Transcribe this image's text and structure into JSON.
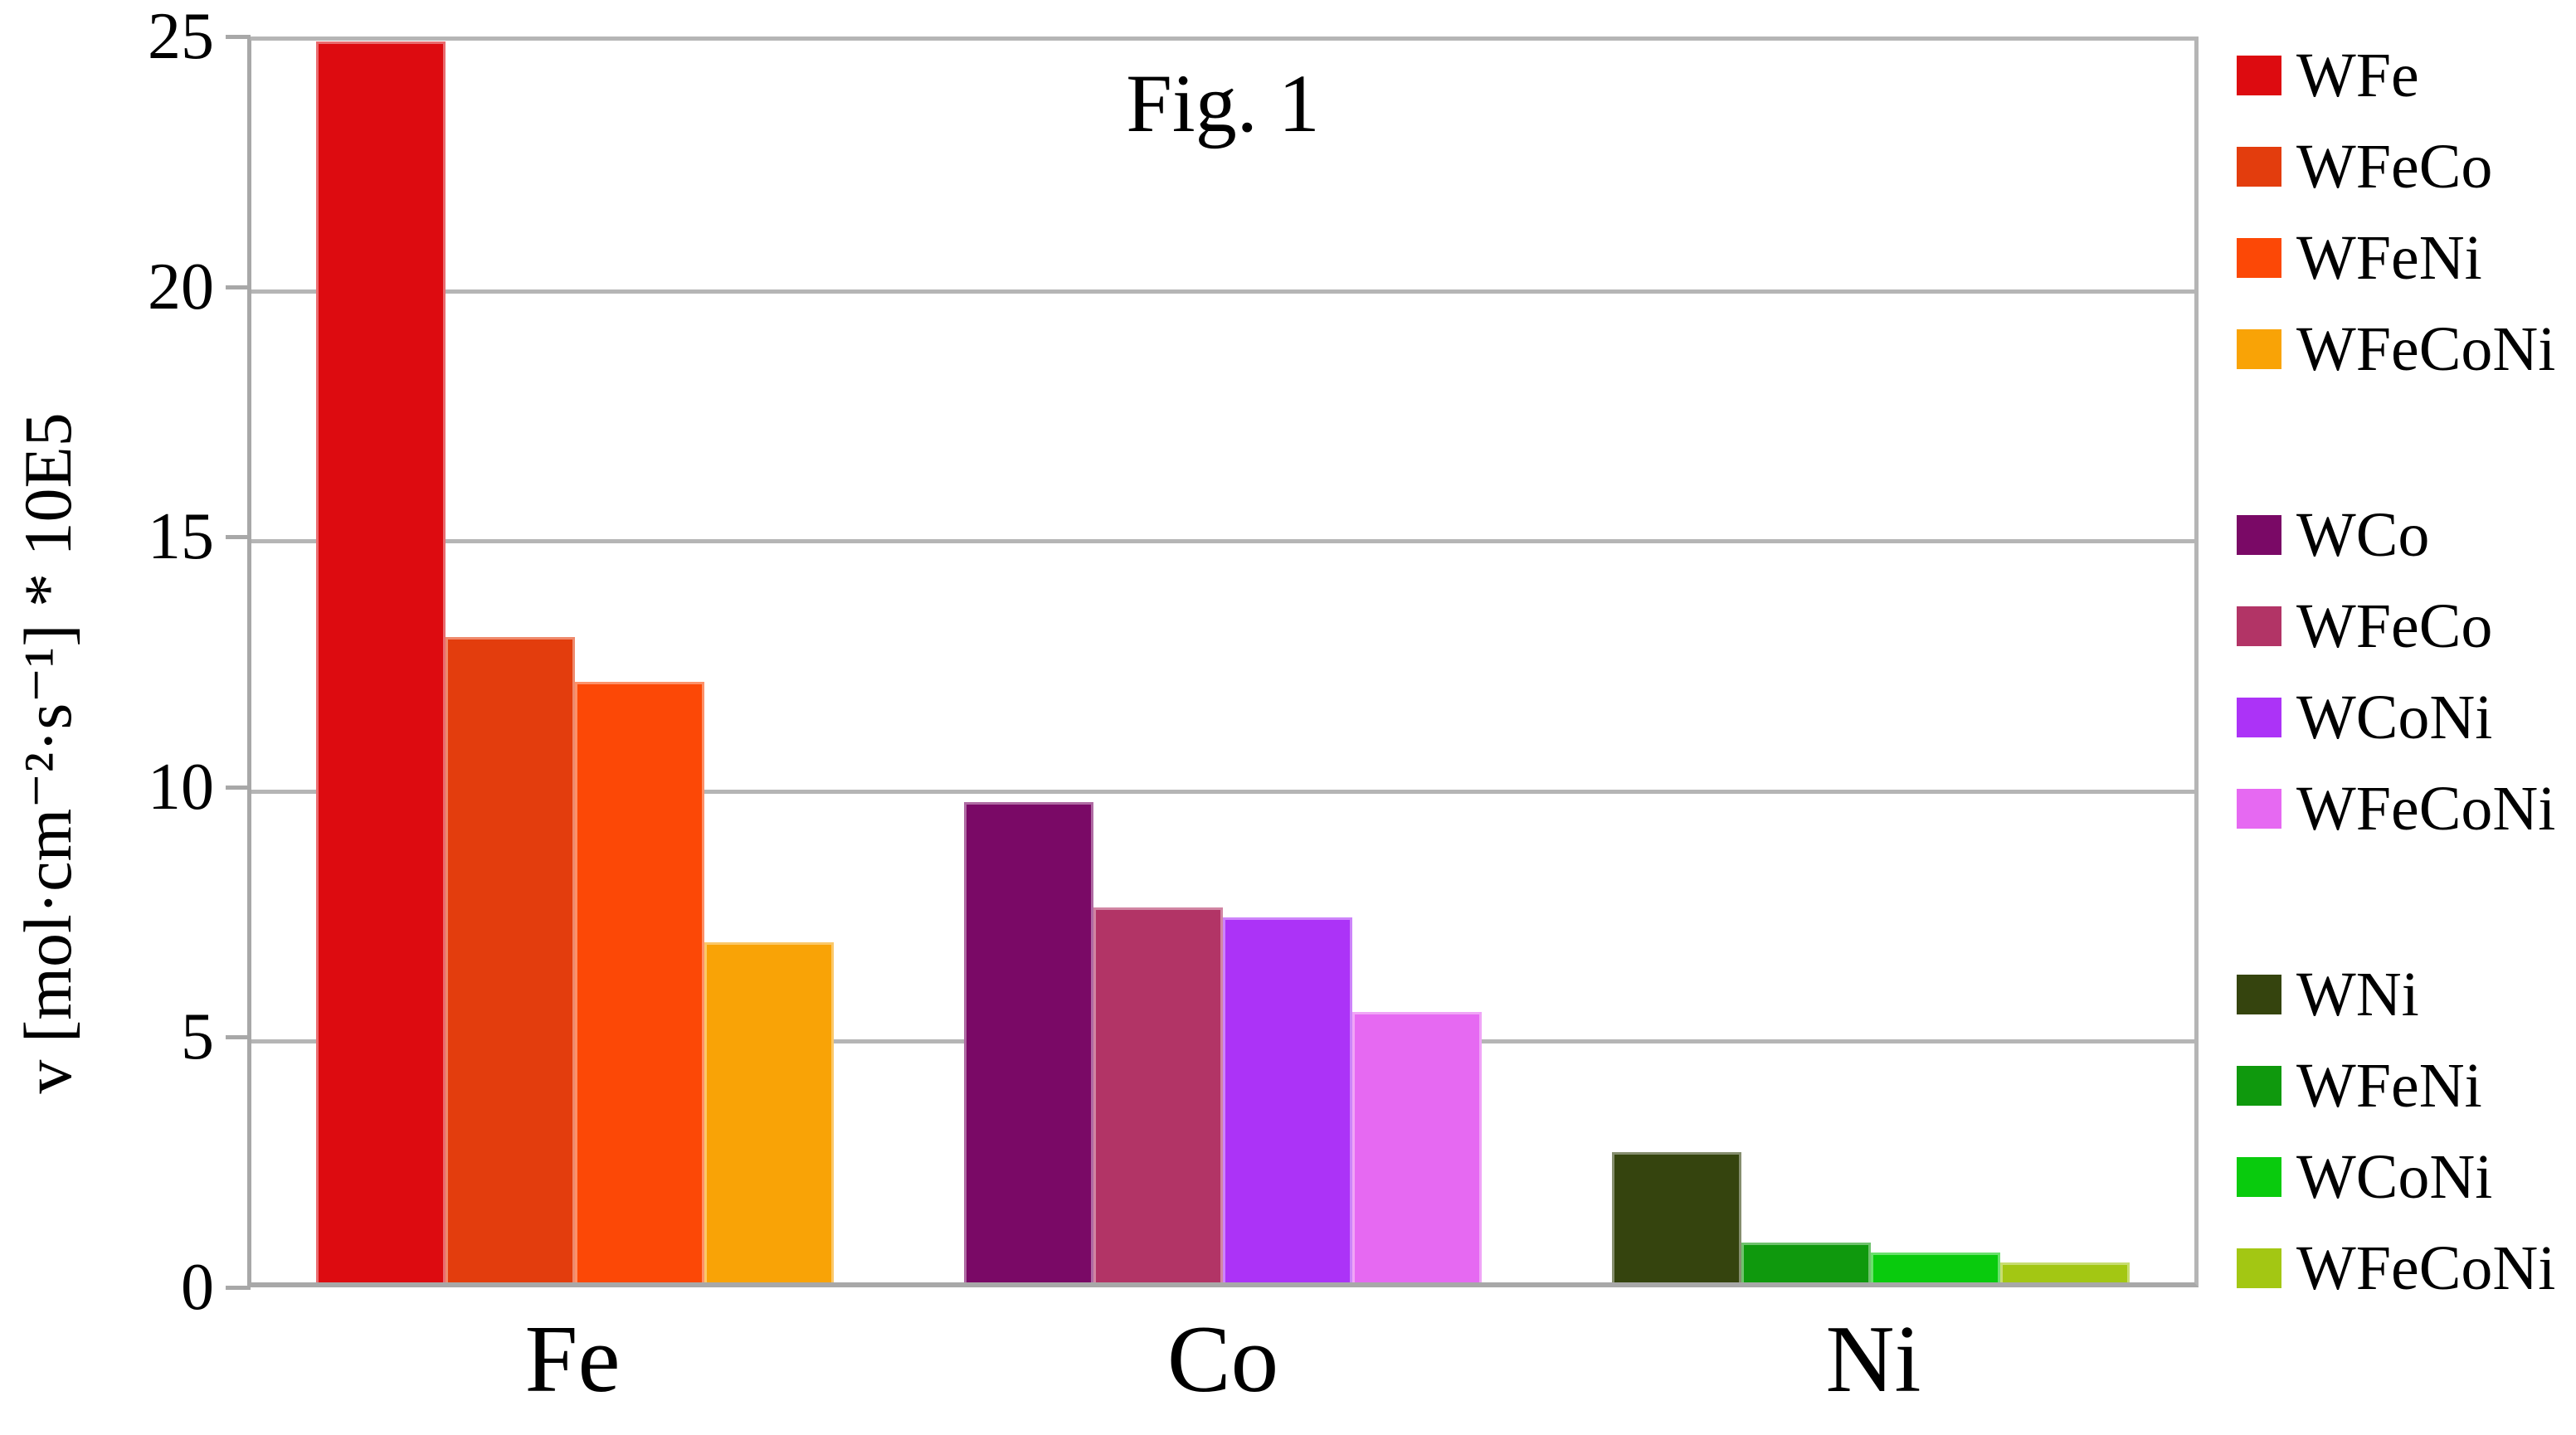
{
  "chart_data": {
    "type": "bar",
    "title": "Fig. 1",
    "ylabel": "v [mol·cm⁻²·s⁻¹] * 10E5",
    "xlabel": "",
    "ylim": [
      0,
      25
    ],
    "yticks": [
      0,
      5,
      10,
      15,
      20,
      25
    ],
    "grid": "horizontal",
    "legend_position": "right",
    "categories": [
      "Fe",
      "Co",
      "Ni"
    ],
    "groups": [
      {
        "category": "Fe",
        "bars": [
          {
            "label": "WFe",
            "value": 24.8,
            "color": "#dd0b10"
          },
          {
            "label": "WFeCo",
            "value": 12.9,
            "color": "#e33d0d"
          },
          {
            "label": "WFeNi",
            "value": 12.0,
            "color": "#fc4806"
          },
          {
            "label": "WFeCoNi",
            "value": 6.8,
            "color": "#f9a306"
          }
        ]
      },
      {
        "category": "Co",
        "bars": [
          {
            "label": "WCo",
            "value": 9.6,
            "color": "#7a0966"
          },
          {
            "label": "WFeCo",
            "value": 7.5,
            "color": "#b23466"
          },
          {
            "label": "WCoNi",
            "value": 7.3,
            "color": "#ac33f7"
          },
          {
            "label": "WFeCoNi",
            "value": 5.4,
            "color": "#e669f2"
          }
        ]
      },
      {
        "category": "Ni",
        "bars": [
          {
            "label": "WNi",
            "value": 2.6,
            "color": "#35440e"
          },
          {
            "label": "WFeNi",
            "value": 0.8,
            "color": "#0f990d"
          },
          {
            "label": "WCoNi",
            "value": 0.6,
            "color": "#09cb0d"
          },
          {
            "label": "WFeCoNi",
            "value": 0.4,
            "color": "#a3c713"
          }
        ]
      }
    ],
    "colors": {
      "gridline": "#b5b5b5",
      "axis": "#a8a8a8",
      "text": "#000000",
      "background": "#ffffff"
    }
  }
}
